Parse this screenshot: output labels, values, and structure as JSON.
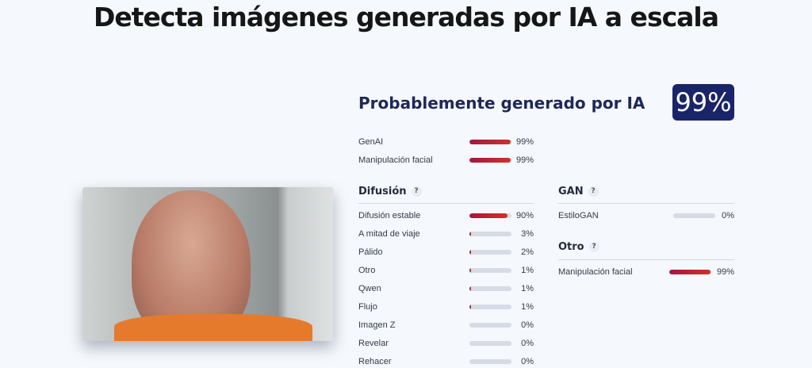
{
  "title": "Detecta imágenes generadas por IA a escala",
  "result": {
    "heading": "Probablemente generado por IA",
    "score": "99%"
  },
  "summary": [
    {
      "label": "GenAI",
      "value": "99%",
      "pct": 99
    },
    {
      "label": "Manipulación facial",
      "value": "99%",
      "pct": 99
    }
  ],
  "diffusion": {
    "title": "Difusión",
    "help": "?",
    "items": [
      {
        "label": "Difusión estable",
        "value": "90%",
        "pct": 90
      },
      {
        "label": "A mitad de viaje",
        "value": "3%",
        "pct": 3
      },
      {
        "label": "Pálido",
        "value": "2%",
        "pct": 2
      },
      {
        "label": "Otro",
        "value": "1%",
        "pct": 1
      },
      {
        "label": "Qwen",
        "value": "1%",
        "pct": 1
      },
      {
        "label": "Flujo",
        "value": "1%",
        "pct": 1
      },
      {
        "label": "Imagen Z",
        "value": "0%",
        "pct": 0
      },
      {
        "label": "Revelar",
        "value": "0%",
        "pct": 0
      },
      {
        "label": "Rehacer",
        "value": "0%",
        "pct": 0
      }
    ]
  },
  "gan": {
    "title": "GAN",
    "help": "?",
    "items": [
      {
        "label": "EstiloGAN",
        "value": "0%",
        "pct": 0
      }
    ]
  },
  "other": {
    "title": "Otro",
    "help": "?",
    "items": [
      {
        "label": "Manipulación facial",
        "value": "99%",
        "pct": 99
      }
    ]
  },
  "colors": {
    "accent": "#1a2468",
    "bar_start": "#a3173f",
    "bar_end": "#d3302a",
    "track": "#d6dbe5"
  }
}
